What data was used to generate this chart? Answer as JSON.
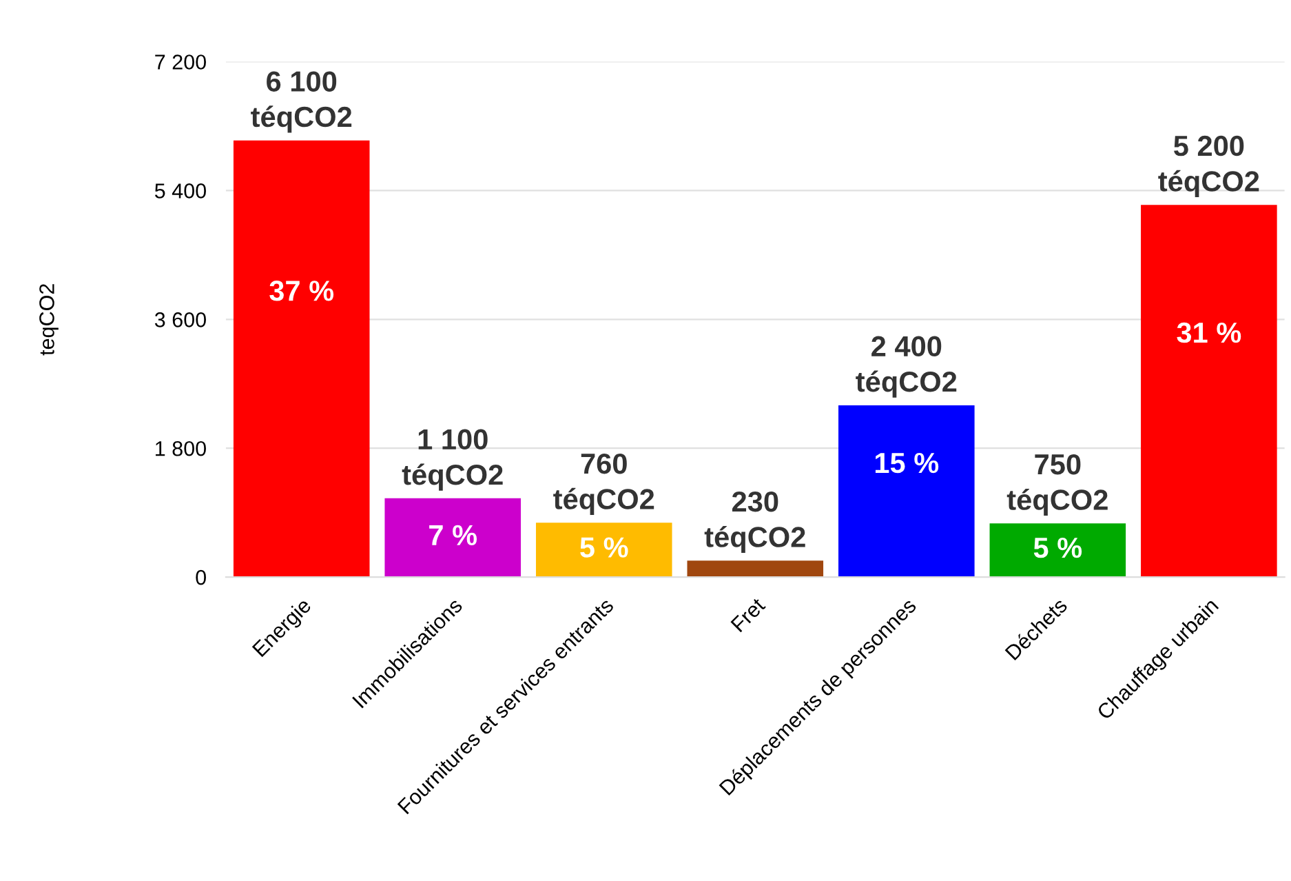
{
  "chart_data": {
    "type": "bar",
    "ylabel": "teqCO2",
    "categories": [
      "Energie",
      "Immobilisations",
      "Fournitures et services entrants",
      "Fret",
      "Déplacements de personnes",
      "Déchets",
      "Chauffage urbain"
    ],
    "values": [
      6100,
      1100,
      760,
      230,
      2400,
      750,
      5200
    ],
    "colors": [
      "#ff0000",
      "#cc00cc",
      "#ffbb00",
      "#a0470f",
      "#0000ff",
      "#00aa00",
      "#ff0000"
    ],
    "value_labels": [
      "6 100\ntéqCO2",
      "1 100\ntéqCO2",
      "760\ntéqCO2",
      "230\ntéqCO2",
      "2 400\ntéqCO2",
      "750\ntéqCO2",
      "5 200\ntéqCO2"
    ],
    "annotations": [
      "37 %",
      "7 %",
      "5 %",
      "15 %",
      "5 %",
      "31 %"
    ],
    "ylim": [
      0,
      7200
    ],
    "yticks": [
      {
        "value": 0,
        "label": "0"
      },
      {
        "value": 1800,
        "label": "1 800"
      },
      {
        "value": 3600,
        "label": "3 600"
      },
      {
        "value": 5400,
        "label": "5 400"
      },
      {
        "value": 7200,
        "label": "7 200"
      }
    ],
    "grid": "y"
  }
}
